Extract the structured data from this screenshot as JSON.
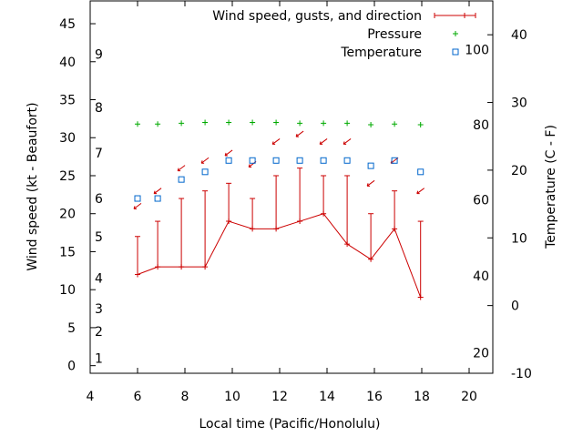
{
  "chart_data": {
    "type": "line",
    "xlabel": "Local time (Pacific/Honolulu)",
    "ylabel": "Wind speed (kt - Beaufort)",
    "y2label": "Temperature (C - F)",
    "xlim": [
      4,
      21
    ],
    "ylim": [
      -1,
      48
    ],
    "y2lim": [
      -10,
      45
    ],
    "x_ticks": [
      4,
      6,
      8,
      10,
      12,
      14,
      16,
      18,
      20
    ],
    "y_ticks": [
      0,
      5,
      10,
      15,
      20,
      25,
      30,
      35,
      40,
      45
    ],
    "y2_ticks": [
      -10,
      0,
      10,
      20,
      30,
      40
    ],
    "fahrenheit_labels": [
      {
        "text": "20",
        "y2": -7
      },
      {
        "text": "40",
        "y2": 4.4
      },
      {
        "text": "60",
        "y2": 15.6
      },
      {
        "text": "80",
        "y2": 26.7
      },
      {
        "text": "100",
        "y2": 37.8
      }
    ],
    "beaufort_labels": [
      {
        "text": "1",
        "y": 1
      },
      {
        "text": "2",
        "y": 4.5
      },
      {
        "text": "3",
        "y": 7.5
      },
      {
        "text": "4",
        "y": 11.5
      },
      {
        "text": "5",
        "y": 17
      },
      {
        "text": "6",
        "y": 22
      },
      {
        "text": "7",
        "y": 28
      },
      {
        "text": "8",
        "y": 34
      },
      {
        "text": "9",
        "y": 41
      }
    ],
    "legend": {
      "position": "top-right",
      "entries": [
        "Wind speed, gusts, and direction",
        "Pressure",
        "Temperature"
      ]
    },
    "colors": {
      "wind": "#cc0000",
      "pressure": "#00aa00",
      "temperature": "#0066cc"
    },
    "x": [
      6,
      6.85,
      7.85,
      8.85,
      9.85,
      10.85,
      11.85,
      12.85,
      13.85,
      14.85,
      15.85,
      16.85,
      17.95
    ],
    "series": [
      {
        "name": "Wind speed, gusts, and direction",
        "values": [
          12,
          13,
          13,
          13,
          19,
          18,
          18,
          19,
          20,
          16,
          14,
          18,
          9
        ],
        "gusts": [
          17,
          19,
          22,
          23,
          24,
          22,
          25,
          26,
          25,
          25,
          20,
          23,
          19
        ],
        "direction_y": [
          21,
          23,
          26,
          27,
          28,
          26.5,
          29.5,
          30.5,
          29.5,
          29.5,
          24,
          27,
          23
        ]
      },
      {
        "name": "Pressure",
        "values": [
          31.8,
          31.8,
          31.9,
          32,
          32,
          32,
          32,
          31.9,
          31.9,
          31.9,
          31.7,
          31.8,
          31.7
        ]
      },
      {
        "name": "Temperature",
        "values": [
          22,
          22,
          24.5,
          25.5,
          27,
          27,
          27,
          27,
          27,
          27,
          26.3,
          27,
          25.5
        ]
      }
    ]
  }
}
